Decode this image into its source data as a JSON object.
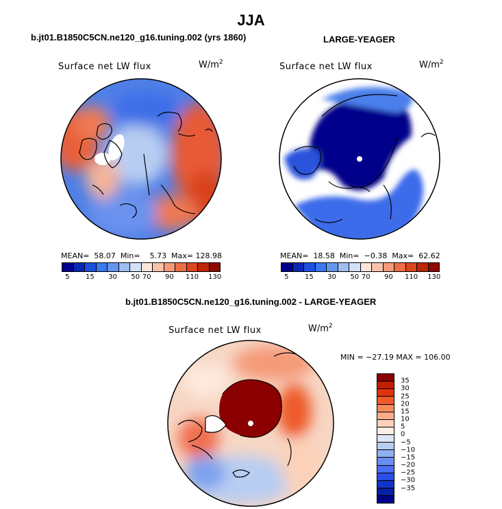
{
  "figure": {
    "title": "JJA",
    "left_panel_title": "b.jt01.B1850C5CN.ne120_g16.tuning.002 (yrs 1860)",
    "right_panel_title": "LARGE-YEAGER",
    "diff_panel_title": "b.jt01.B1850C5CN.ne120_g16.tuning.002 - LARGE-YEAGER"
  },
  "panels": {
    "left": {
      "variable": "Surface net LW flux",
      "units_base": "W/m",
      "units_exp": "2",
      "stats": "MEAN=  58.07  Min=    5.73  Max= 128.98"
    },
    "right": {
      "variable": "Surface net LW flux",
      "units_base": "W/m",
      "units_exp": "2",
      "stats": "MEAN=  18.58  Min=  −0.38  Max=  62.62"
    },
    "diff": {
      "variable": "Surface net LW flux",
      "units_base": "W/m",
      "units_exp": "2",
      "stats": "MIN = −27.19 MAX = 106.00"
    }
  },
  "colorbars": {
    "abs": {
      "colors": [
        "#00008b",
        "#0a28b4",
        "#1e50e0",
        "#3c78f0",
        "#6496f0",
        "#a0bef0",
        "#d2e1f5",
        "#fce6dc",
        "#f8c3a8",
        "#f59a78",
        "#ec6e46",
        "#dc461e",
        "#bd2608",
        "#8c0a00"
      ],
      "labels": [
        "5",
        "15",
        "30",
        "50",
        "70",
        "90",
        "110",
        "130"
      ]
    },
    "diff": {
      "colors": [
        "#8b0000",
        "#c31e00",
        "#e1320a",
        "#ee5a2a",
        "#f58a5a",
        "#f9ae8a",
        "#fbd2b8",
        "#fdeee6",
        "#dce6f6",
        "#b8cdf2",
        "#90aff0",
        "#6a8ef0",
        "#4a6ef0",
        "#2a4ee6",
        "#1432c8",
        "#0a1ea0",
        "#00008b"
      ],
      "labels": [
        "35",
        "30",
        "25",
        "20",
        "15",
        "10",
        "5",
        "0",
        "−5",
        "−10",
        "−15",
        "−20",
        "−25",
        "−30",
        "−35"
      ]
    }
  }
}
